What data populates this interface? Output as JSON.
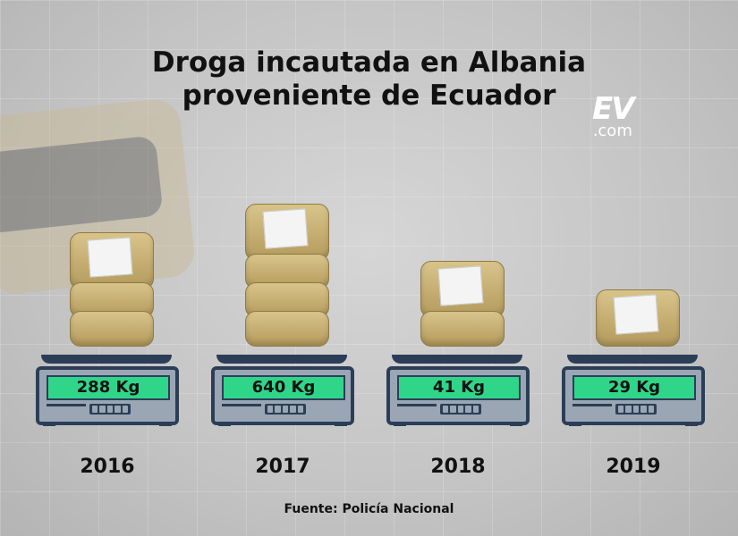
{
  "chart_data": {
    "type": "bar",
    "title": "Droga incautada en Albania proveniente de Ecuador",
    "categories": [
      "2016",
      "2017",
      "2018",
      "2019"
    ],
    "values": [
      288,
      640,
      41,
      29
    ],
    "value_labels": [
      "288 Kg",
      "640 Kg",
      "41 Kg",
      "29 Kg"
    ],
    "bales": [
      3,
      4,
      2,
      1
    ],
    "unit": "Kg",
    "source": "Fuente: Policía Nacional"
  },
  "title_line1": "Droga incautada en Albania",
  "title_line2": "proveniente de Ecuador",
  "logo": {
    "mark": "EV",
    "suffix": ".com"
  },
  "colors": {
    "display": "#2fd68a",
    "scale": "#2c3e57"
  }
}
